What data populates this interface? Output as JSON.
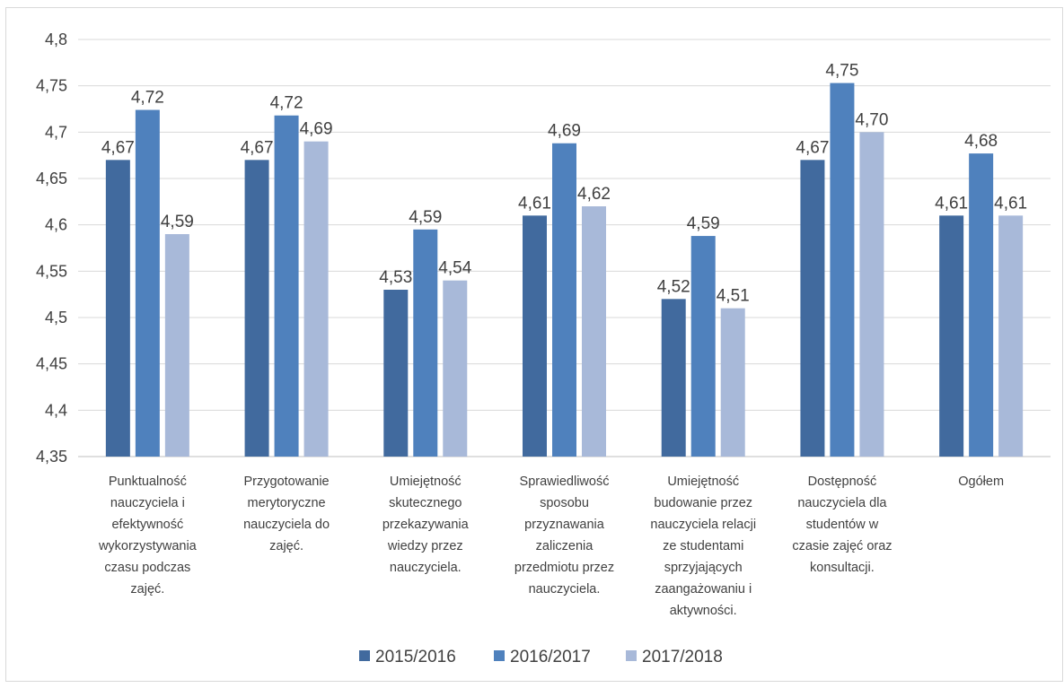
{
  "chart_data": {
    "type": "bar",
    "title": "",
    "xlabel": "",
    "ylabel": "",
    "ylim": [
      4.35,
      4.8
    ],
    "yticks": [
      4.35,
      4.4,
      4.45,
      4.5,
      4.55,
      4.6,
      4.65,
      4.7,
      4.75,
      4.8
    ],
    "ytick_labels": [
      "4,35",
      "4,4",
      "4,45",
      "4,5",
      "4,55",
      "4,6",
      "4,65",
      "4,7",
      "4,75",
      "4,8"
    ],
    "grid": true,
    "legend_position": "bottom",
    "categories": [
      "Punktualność nauczyciela i efektywność wykorzystywania czasu podczas zajęć.",
      "Przygotowanie merytoryczne nauczyciela do zajęć.",
      "Umiejętność skutecznego przekazywania wiedzy przez nauczyciela.",
      "Sprawiedliwość sposobu przyznawania zaliczenia przedmiotu przez nauczyciela.",
      "Umiejętność budowanie przez nauczyciela relacji ze studentami sprzyjających zaangażowaniu i aktywności.",
      "Dostępność nauczyciela dla studentów w czasie zajęć oraz konsultacji.",
      "Ogółem"
    ],
    "category_lines": [
      [
        "Punktualność",
        "nauczyciela i",
        "efektywność",
        "wykorzystywania",
        "czasu podczas",
        "zajęć."
      ],
      [
        "Przygotowanie",
        "merytoryczne",
        "nauczyciela do",
        "zajęć."
      ],
      [
        "Umiejętność",
        "skutecznego",
        "przekazywania",
        "wiedzy przez",
        "nauczyciela."
      ],
      [
        "Sprawiedliwość",
        "sposobu",
        "przyznawania",
        "zaliczenia",
        "przedmiotu przez",
        "nauczyciela."
      ],
      [
        "Umiejętność",
        "budowanie przez",
        "nauczyciela relacji",
        "ze studentami",
        "sprzyjających",
        "zaangażowaniu i",
        "aktywności."
      ],
      [
        "Dostępność",
        "nauczyciela dla",
        "studentów w",
        "czasie zajęć oraz",
        "konsultacji."
      ],
      [
        "Ogółem"
      ]
    ],
    "series": [
      {
        "name": "2015/2016",
        "color": "#416a9e",
        "values": [
          4.67,
          4.67,
          4.53,
          4.61,
          4.52,
          4.67,
          4.61
        ],
        "labels": [
          "4,67",
          "4,67",
          "4,53",
          "4,61",
          "4,52",
          "4,67",
          "4,61"
        ]
      },
      {
        "name": "2016/2017",
        "color": "#4f81bd",
        "values": [
          4.724,
          4.718,
          4.595,
          4.688,
          4.588,
          4.753,
          4.677
        ],
        "labels": [
          "4,72",
          "4,72",
          "4,59",
          "4,69",
          "4,59",
          "4,75",
          "4,68"
        ]
      },
      {
        "name": "2017/2018",
        "color": "#a8b9d9",
        "values": [
          4.59,
          4.69,
          4.54,
          4.62,
          4.51,
          4.7,
          4.61
        ],
        "labels": [
          "4,59",
          "4,69",
          "4,54",
          "4,62",
          "4,51",
          "4,70",
          "4,61"
        ]
      }
    ]
  }
}
